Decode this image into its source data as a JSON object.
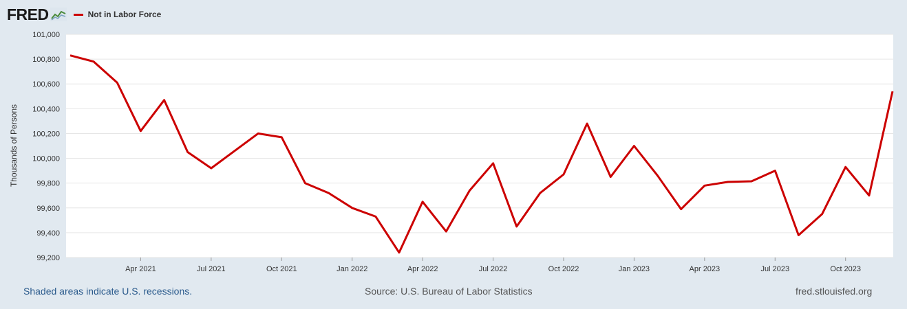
{
  "header": {
    "logo_text": "FRED",
    "legend_label": "Not in Labor Force"
  },
  "footer": {
    "recessions_note": "Shaded areas indicate U.S. recessions.",
    "source": "Source: U.S. Bureau of Labor Statistics",
    "site": "fred.stlouisfed.org"
  },
  "chart_data": {
    "type": "line",
    "title": "",
    "ylabel": "Thousands of Persons",
    "xlabel": "",
    "ylim": [
      99200,
      101000
    ],
    "yticks": [
      99200,
      99400,
      99600,
      99800,
      100000,
      100200,
      100400,
      100600,
      100800,
      101000
    ],
    "ytick_labels": [
      "99,200",
      "99,400",
      "99,600",
      "99,800",
      "100,000",
      "100,200",
      "100,400",
      "100,600",
      "100,800",
      "101,000"
    ],
    "xticks": [
      "2021-04",
      "2021-07",
      "2021-10",
      "2022-01",
      "2022-04",
      "2022-07",
      "2022-10",
      "2023-01",
      "2023-04",
      "2023-07",
      "2023-10"
    ],
    "xtick_labels": [
      "Apr 2021",
      "Jul 2021",
      "Oct 2021",
      "Jan 2022",
      "Apr 2022",
      "Jul 2022",
      "Oct 2022",
      "Jan 2023",
      "Apr 2023",
      "Jul 2023",
      "Oct 2023"
    ],
    "grid": true,
    "line_color": "#cc0000",
    "series": [
      {
        "name": "Not in Labor Force",
        "x": [
          "2021-01",
          "2021-02",
          "2021-03",
          "2021-04",
          "2021-05",
          "2021-06",
          "2021-07",
          "2021-08",
          "2021-09",
          "2021-10",
          "2021-11",
          "2021-12",
          "2022-01",
          "2022-02",
          "2022-03",
          "2022-04",
          "2022-05",
          "2022-06",
          "2022-07",
          "2022-08",
          "2022-09",
          "2022-10",
          "2022-11",
          "2022-12",
          "2023-01",
          "2023-02",
          "2023-03",
          "2023-04",
          "2023-05",
          "2023-06",
          "2023-07",
          "2023-08",
          "2023-09",
          "2023-10",
          "2023-11",
          "2023-12"
        ],
        "values": [
          100830,
          100780,
          100610,
          100220,
          100470,
          100050,
          99920,
          100060,
          100200,
          100170,
          99800,
          99720,
          99600,
          99530,
          99240,
          99650,
          99410,
          99740,
          99960,
          99450,
          99720,
          99870,
          100280,
          99850,
          100100,
          99860,
          99590,
          99780,
          99810,
          99815,
          99900,
          99380,
          99550,
          99930,
          99700,
          100540
        ]
      }
    ]
  }
}
